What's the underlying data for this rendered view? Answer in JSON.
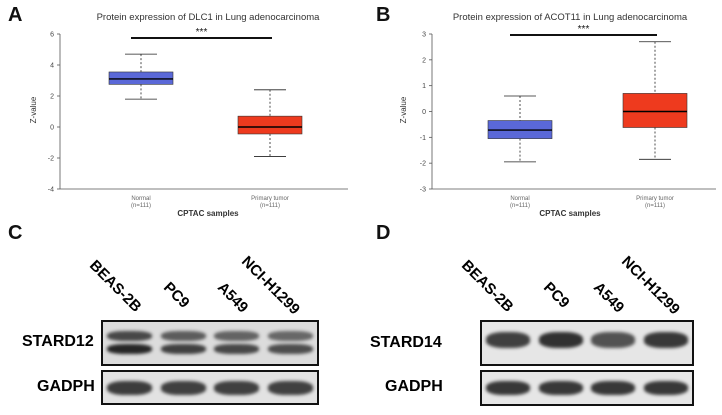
{
  "panels": {
    "a": "A",
    "b": "B",
    "c": "C",
    "d": "D"
  },
  "colors": {
    "normal_box": "#5a68d8",
    "tumor_box": "#ee3a1e",
    "axis": "#555555",
    "stars": "#111111"
  },
  "chart_data": [
    {
      "type": "boxplot",
      "title": "Protein expression of DLC1 in Lung adenocarcinoma",
      "xlabel": "CPTAC samples",
      "ylabel": "Z-value",
      "ylim": [
        -4,
        6
      ],
      "yticks": [
        "6",
        "4",
        "2",
        "0",
        "-2",
        "-4"
      ],
      "ytick_values": [
        6,
        4,
        2,
        0,
        -2,
        -4
      ],
      "significance": "***",
      "categories": [
        {
          "name": "Normal",
          "n": "(n=111)",
          "whisker_low": 1.8,
          "q1": 2.75,
          "median": 3.1,
          "q3": 3.55,
          "whisker_high": 4.7,
          "color": "#5a68d8"
        },
        {
          "name": "Primary tumor",
          "n": "(n=111)",
          "whisker_low": -1.9,
          "q1": -0.45,
          "median": 0.0,
          "q3": 0.7,
          "whisker_high": 2.4,
          "color": "#ee3a1e"
        }
      ]
    },
    {
      "type": "boxplot",
      "title": "Protein expression of ACOT11 in Lung adenocarcinoma",
      "xlabel": "CPTAC samples",
      "ylabel": "Z-value",
      "ylim": [
        -3,
        3
      ],
      "yticks": [
        "3",
        "2",
        "1",
        "0",
        "-1",
        "-2",
        "-3"
      ],
      "ytick_values": [
        3,
        2,
        1,
        0,
        -1,
        -2,
        -3
      ],
      "significance": "***",
      "categories": [
        {
          "name": "Normal",
          "n": "(n=111)",
          "whisker_low": -1.95,
          "q1": -1.05,
          "median": -0.72,
          "q3": -0.35,
          "whisker_high": 0.6,
          "color": "#5a68d8"
        },
        {
          "name": "Primary tumor",
          "n": "(n=111)",
          "whisker_low": -1.85,
          "q1": -0.62,
          "median": 0.0,
          "q3": 0.7,
          "whisker_high": 2.7,
          "color": "#ee3a1e"
        }
      ]
    }
  ],
  "blots": {
    "left": {
      "lanes": [
        "BEAS-2B",
        "PC9",
        "A549",
        "NCI-H1299"
      ],
      "target": "STARD12",
      "control": "GADPH",
      "target_intensity": [
        0.85,
        0.75,
        0.72,
        0.7
      ],
      "control_intensity": [
        0.9,
        0.88,
        0.88,
        0.88
      ]
    },
    "right": {
      "lanes": [
        "BEAS-2B",
        "PC9",
        "A549",
        "NCI-H1299"
      ],
      "target": "STARD14",
      "control": "GADPH",
      "target_intensity": [
        0.88,
        0.95,
        0.8,
        0.92
      ],
      "control_intensity": [
        0.92,
        0.92,
        0.92,
        0.92
      ]
    }
  }
}
